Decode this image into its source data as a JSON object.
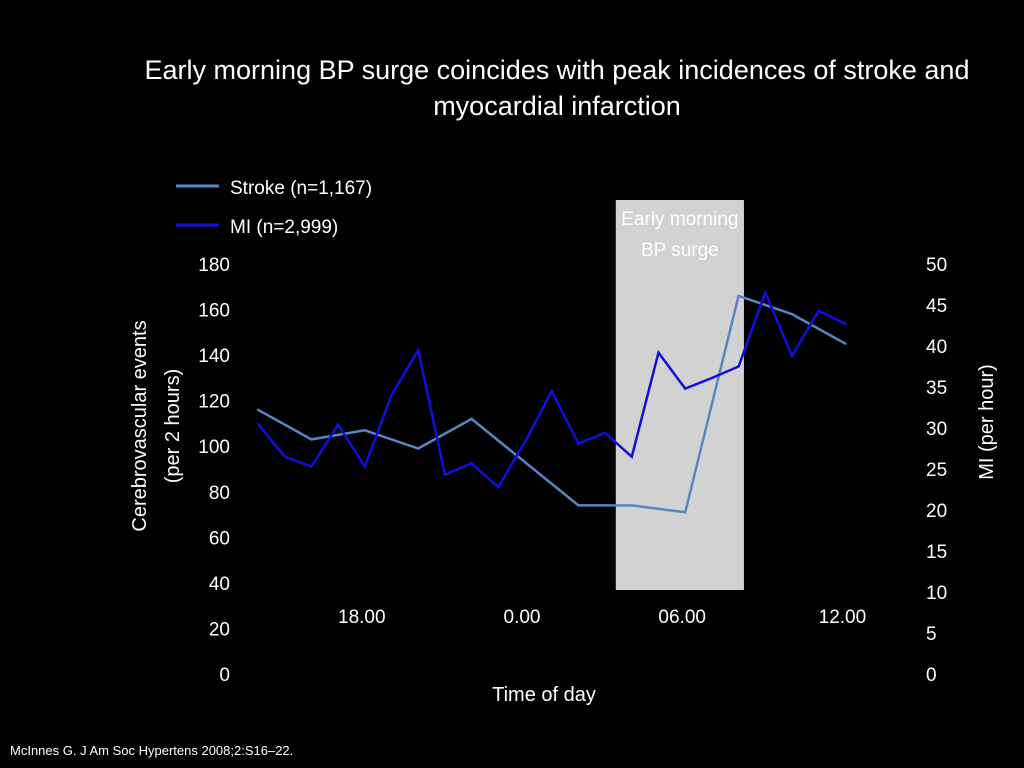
{
  "slide": {
    "title": "Early morning BP surge coincides with peak incidences of stroke and myocardial infarction",
    "citation": "McInnes G. J Am Soc Hypertens 2008;2:S16–22."
  },
  "chart_data": {
    "type": "line",
    "title": "Early morning BP surge coincides with peak incidences of stroke and myocardial infarction",
    "xlabel": "Time of day",
    "x_tick_labels": [
      "18.00",
      "0.00",
      "06.00",
      "12.00"
    ],
    "x_hours": [
      14,
      15,
      16,
      17,
      18,
      19,
      20,
      21,
      22,
      23,
      24,
      25,
      26,
      27,
      28,
      29,
      30,
      31,
      32,
      33,
      34,
      35,
      36
    ],
    "y_left": {
      "label": "Cerebrovascular events (per 2 hours)",
      "lim": [
        0,
        180
      ],
      "ticks": [
        0,
        20,
        40,
        60,
        80,
        100,
        120,
        140,
        160,
        180
      ]
    },
    "y_right": {
      "label": "MI (per hour)",
      "lim": [
        0,
        50
      ],
      "ticks": [
        0,
        5,
        10,
        15,
        20,
        25,
        30,
        35,
        40,
        45,
        50
      ]
    },
    "highlight": {
      "label": "Early morning BP surge",
      "x_range": [
        27.4,
        32.2
      ],
      "color": "#d2d2d2"
    },
    "series": [
      {
        "name": "Stroke (n=1,167)",
        "axis": "left",
        "color": "#5b84c4",
        "x": [
          14,
          16,
          18,
          20,
          22,
          24,
          26,
          28,
          30,
          32,
          34,
          36
        ],
        "values": [
          116,
          103,
          107,
          99,
          112,
          93,
          74,
          74,
          71,
          166,
          158,
          145
        ]
      },
      {
        "name": "MI (n=2,999)",
        "axis": "right",
        "color": "#1010dd",
        "x": [
          14,
          15,
          16,
          17,
          18,
          19,
          20,
          21,
          22,
          23,
          24,
          25,
          26,
          27,
          28,
          29,
          30,
          31,
          32,
          33,
          34,
          35,
          36
        ],
        "values": [
          30.5,
          26.5,
          25.3,
          30.4,
          25.3,
          34,
          39.5,
          24.3,
          25.7,
          22.8,
          28.3,
          34.5,
          28.1,
          29.4,
          26.5,
          39.2,
          34.8,
          36.1,
          37.5,
          46.5,
          38.8,
          44.3,
          42.7
        ]
      }
    ],
    "legend": "top-left",
    "grid": false
  }
}
